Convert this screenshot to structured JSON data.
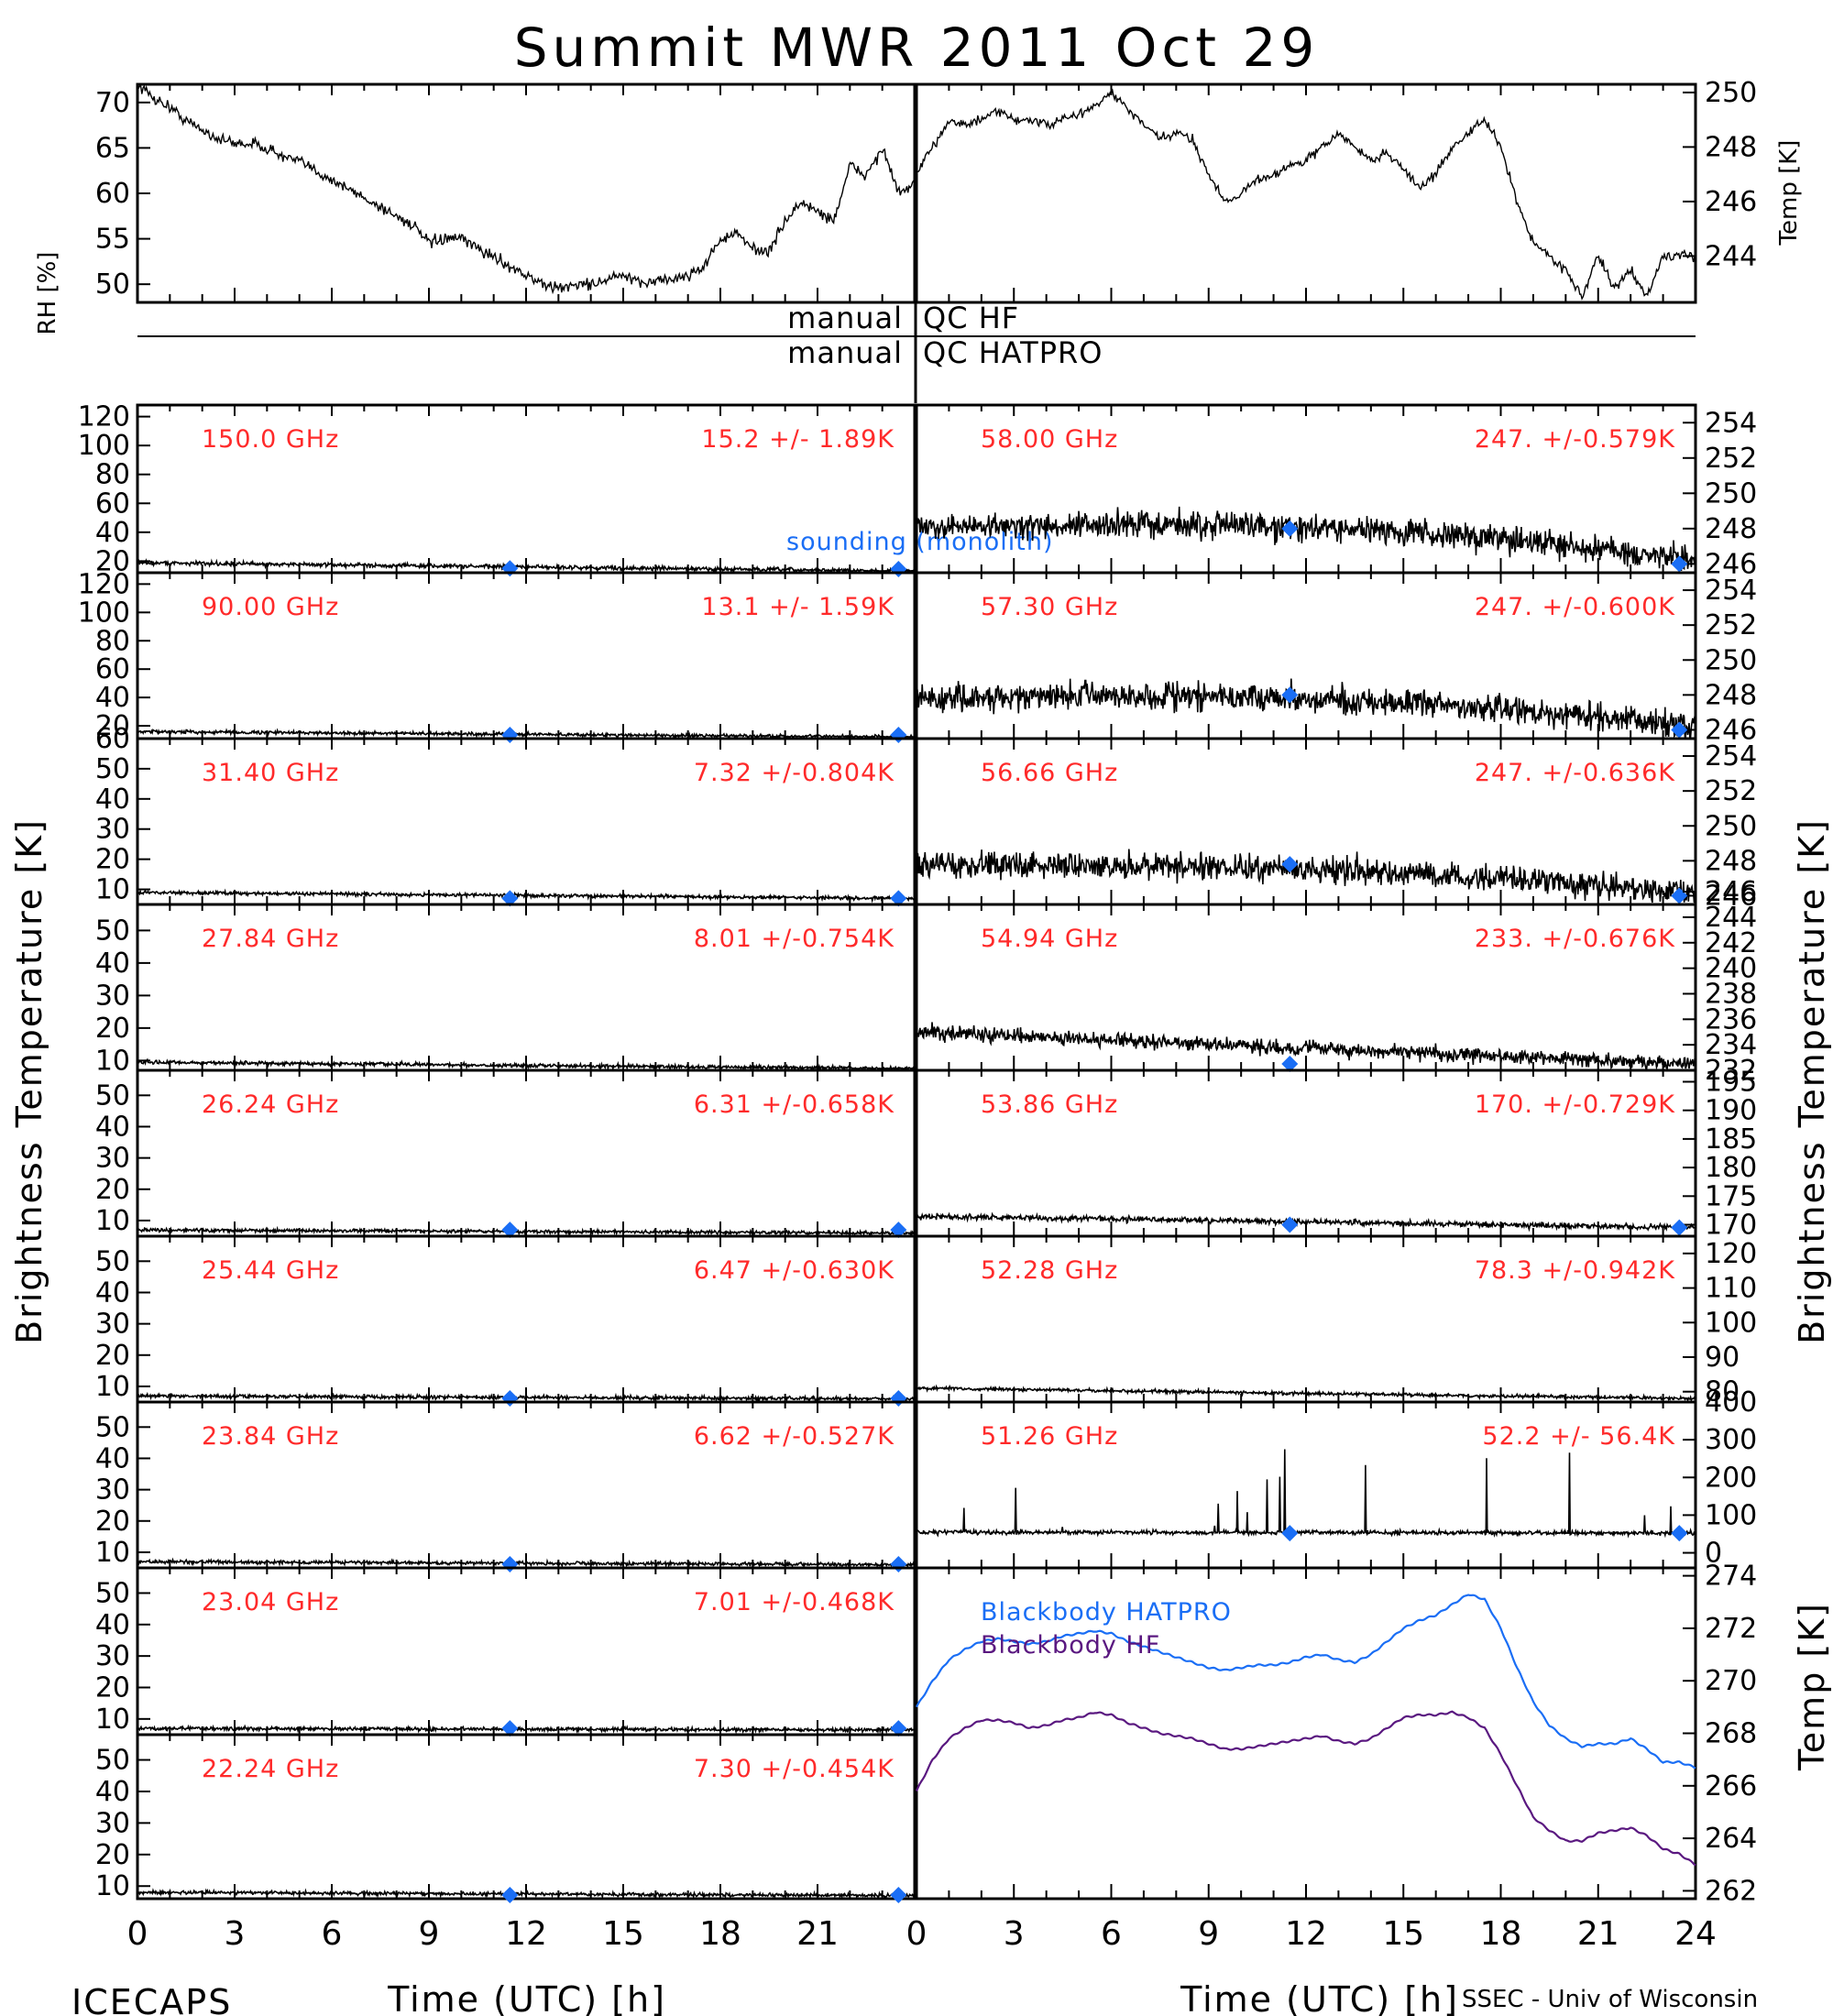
{
  "title": "Summit MWR 2011 Oct 29",
  "footer": {
    "left": "ICECAPS",
    "right": "SSEC - Univ of Wisconsin",
    "xlabel_left": "Time (UTC) [h]",
    "xlabel_right": "Time (UTC) [h]"
  },
  "qc": {
    "left1": "manual",
    "right1": "QC HF",
    "left2": "manual",
    "right2": "QC HATPRO"
  },
  "side_labels": {
    "rh": "RH [%]",
    "temp_top": "Temp [K]",
    "tb_left": "Brightness Temperature [K]",
    "tb_right": "Brightness Temperature [K]",
    "temp_bottom": "Temp [K]"
  },
  "sounding_label": "sounding (monolith)",
  "colors": {
    "axis": "#000000",
    "label": "#ff2a2a",
    "sounding": "#1a6ef5",
    "hatpro": "#1a6ef5",
    "hf": "#5a1880"
  },
  "chart_data": [
    {
      "type": "line",
      "panel": "relative-humidity",
      "ylabel": "RH [%]",
      "x_ticks": [
        0,
        3,
        6,
        9,
        12,
        15,
        18,
        21,
        24
      ],
      "ylim": [
        48,
        72
      ],
      "yticks": [
        50,
        55,
        60,
        65,
        70
      ],
      "x": [
        0,
        0.5,
        1,
        1.5,
        2,
        2.5,
        3,
        3.5,
        4,
        4.5,
        5,
        5.5,
        6,
        6.5,
        7,
        7.5,
        8,
        8.5,
        9,
        9.5,
        10,
        10.5,
        11,
        11.5,
        12,
        12.5,
        13,
        13.5,
        14,
        14.5,
        15,
        15.5,
        16,
        16.5,
        17,
        17.5,
        18,
        18.5,
        19,
        19.5,
        20,
        20.5,
        21,
        21.5,
        22,
        22.5,
        23,
        23.5,
        24
      ],
      "y": [
        72,
        70.5,
        69.5,
        68,
        67,
        66,
        65.5,
        65.5,
        65,
        64,
        63.5,
        62.5,
        61.5,
        60.5,
        59.5,
        58.5,
        57.5,
        56.5,
        54.5,
        55,
        55,
        54,
        53,
        52,
        51,
        50,
        49.5,
        50,
        50,
        50.5,
        51,
        50,
        50.5,
        50.5,
        51,
        52,
        55,
        55.5,
        54,
        53.5,
        57,
        59,
        58,
        57,
        63,
        62,
        65,
        60,
        61
      ]
    },
    {
      "type": "line",
      "panel": "temperature",
      "ylabel": "Temp [K]",
      "x_ticks": [
        0,
        3,
        6,
        9,
        12,
        15,
        18,
        21,
        24
      ],
      "ylim": [
        242.3,
        250.3
      ],
      "yticks": [
        244,
        246,
        248,
        250
      ],
      "x": [
        0,
        0.5,
        1,
        1.5,
        2,
        2.5,
        3,
        3.5,
        4,
        4.5,
        5,
        5.5,
        6,
        6.5,
        7,
        7.5,
        8,
        8.5,
        9,
        9.5,
        10,
        10.5,
        11,
        11.5,
        12,
        12.5,
        13,
        13.5,
        14,
        14.5,
        15,
        15.5,
        16,
        16.5,
        17,
        17.5,
        18,
        18.5,
        19,
        19.5,
        20,
        20.5,
        21,
        21.5,
        22,
        22.5,
        23,
        23.5,
        24
      ],
      "y": [
        247,
        248,
        249,
        248.8,
        249,
        249.3,
        249,
        249,
        248.8,
        249,
        249.2,
        249.5,
        250,
        249.4,
        248.8,
        248.3,
        248.5,
        248.3,
        247,
        246,
        246.3,
        246.8,
        247,
        247.3,
        247.5,
        248,
        248.5,
        248,
        247.5,
        247.8,
        247.2,
        246.5,
        247,
        248,
        248.5,
        249,
        248,
        246,
        244.5,
        244,
        243.5,
        242.5,
        244,
        242.8,
        243.5,
        242.5,
        244,
        244,
        244
      ]
    },
    {
      "type": "line",
      "panel": "brightness-temperature",
      "ylabel": "Brightness Temperature [K]",
      "x_ticks": [
        0,
        3,
        6,
        9,
        12,
        15,
        18,
        21,
        24
      ],
      "xlabel": "Time (UTC) [h]",
      "channels": [
        {
          "freq": "150.0 GHz",
          "stats": "15.2 +/-  1.89K",
          "ylim": [
            12,
            128
          ],
          "yticks": [
            20,
            40,
            60,
            80,
            100,
            120
          ],
          "start": 19,
          "end": 13,
          "noise": 1.0,
          "sounding": [
            15,
            14
          ]
        },
        {
          "freq": "90.00 GHz",
          "stats": "13.1 +/-  1.59K",
          "ylim": [
            11,
            128
          ],
          "yticks": [
            20,
            40,
            60,
            80,
            100,
            120
          ],
          "start": 16,
          "end": 12,
          "noise": 0.8,
          "sounding": [
            12,
            12
          ]
        },
        {
          "freq": "31.40 GHz",
          "stats": "7.32 +/-0.804K",
          "ylim": [
            5,
            60
          ],
          "yticks": [
            10,
            20,
            30,
            40,
            50,
            60
          ],
          "start": 9,
          "end": 7,
          "noise": 0.4,
          "sounding": [
            7,
            7
          ]
        },
        {
          "freq": "27.84 GHz",
          "stats": "8.01 +/-0.754K",
          "ylim": [
            7,
            58
          ],
          "yticks": [
            10,
            20,
            30,
            40,
            50
          ],
          "start": 9.5,
          "end": 7.5,
          "noise": 0.4,
          "sounding": [
            null,
            null
          ]
        },
        {
          "freq": "26.24 GHz",
          "stats": "6.31 +/-0.658K",
          "ylim": [
            5,
            58
          ],
          "yticks": [
            10,
            20,
            30,
            40,
            50
          ],
          "start": 7,
          "end": 6,
          "noise": 0.4,
          "sounding": [
            7,
            7
          ]
        },
        {
          "freq": "25.44 GHz",
          "stats": "6.47 +/-0.630K",
          "ylim": [
            5,
            58
          ],
          "yticks": [
            10,
            20,
            30,
            40,
            50
          ],
          "start": 7,
          "end": 6,
          "noise": 0.4,
          "sounding": [
            6,
            6
          ]
        },
        {
          "freq": "23.84 GHz",
          "stats": "6.62 +/-0.527K",
          "ylim": [
            5,
            58
          ],
          "yticks": [
            10,
            20,
            30,
            40,
            50
          ],
          "start": 7,
          "end": 6,
          "noise": 0.4,
          "sounding": [
            6,
            6
          ]
        },
        {
          "freq": "23.04 GHz",
          "stats": "7.01 +/-0.468K",
          "ylim": [
            5,
            58
          ],
          "yticks": [
            10,
            20,
            30,
            40,
            50
          ],
          "start": 7,
          "end": 6.5,
          "noise": 0.4,
          "sounding": [
            7,
            7
          ]
        },
        {
          "freq": "22.24 GHz",
          "stats": "7.30 +/-0.454K",
          "ylim": [
            6,
            58
          ],
          "yticks": [
            10,
            20,
            30,
            40,
            50
          ],
          "start": 8,
          "end": 7,
          "noise": 0.4,
          "sounding": [
            7,
            7
          ]
        },
        {
          "freq": "58.00 GHz",
          "stats": "247. +/-0.579K",
          "ylim": [
            245.5,
            255
          ],
          "yticks": [
            246,
            248,
            250,
            252,
            254
          ],
          "start": 248,
          "end": 246.2,
          "noise": 0.55,
          "bump": 1.0,
          "sounding": [
            248,
            246
          ]
        },
        {
          "freq": "57.30 GHz",
          "stats": "247. +/-0.600K",
          "ylim": [
            245.5,
            255
          ],
          "yticks": [
            246,
            248,
            250,
            252,
            254
          ],
          "start": 247.8,
          "end": 246.2,
          "noise": 0.55,
          "bump": 0.8,
          "sounding": [
            248,
            246
          ]
        },
        {
          "freq": "56.66 GHz",
          "stats": "247. +/-0.636K",
          "ylim": [
            245.5,
            255
          ],
          "yticks": [
            246,
            248,
            250,
            252,
            254
          ],
          "start": 247.8,
          "end": 246.2,
          "noise": 0.55,
          "bump": 0.5,
          "sounding": [
            247.8,
            246
          ]
        },
        {
          "freq": "54.94 GHz",
          "stats": "233. +/-0.676K",
          "ylim": [
            232,
            245
          ],
          "yticks": [
            232,
            234,
            236,
            238,
            240,
            242,
            244,
            246
          ],
          "start": 235,
          "end": 232.5,
          "noise": 0.4,
          "bump": 0,
          "sounding": [
            232.5,
            null
          ]
        },
        {
          "freq": "53.86 GHz",
          "stats": "170. +/-0.729K",
          "ylim": [
            168,
            197
          ],
          "yticks": [
            170,
            175,
            180,
            185,
            190,
            195
          ],
          "start": 171.5,
          "end": 169.5,
          "noise": 0.35,
          "bump": 0,
          "sounding": [
            170,
            169.5
          ]
        },
        {
          "freq": "52.28 GHz",
          "stats": "78.3 +/-0.942K",
          "ylim": [
            77,
            125
          ],
          "yticks": [
            80,
            90,
            100,
            110,
            120
          ],
          "start": 81,
          "end": 78,
          "noise": 0.35,
          "bump": 0,
          "sounding": [
            null,
            null
          ]
        },
        {
          "freq": "51.26 GHz",
          "stats": "52.2 +/- 56.4K",
          "ylim": [
            -40,
            400
          ],
          "yticks": [
            0,
            100,
            200,
            300,
            400
          ],
          "start": 55,
          "end": 52,
          "noise": 4,
          "bump": 0,
          "spiky": true,
          "sounding": [
            52,
            52
          ]
        }
      ]
    },
    {
      "type": "line",
      "panel": "blackbody-temperature",
      "ylabel": "Temp [K]",
      "ylim": [
        261.7,
        274.3
      ],
      "yticks": [
        262,
        264,
        266,
        268,
        270,
        272,
        274
      ],
      "x_ticks": [
        0,
        3,
        6,
        9,
        12,
        15,
        18,
        21,
        24
      ],
      "xlabel": "Time (UTC) [h]",
      "series": [
        {
          "name": "Blackbody HATPRO",
          "x": [
            0,
            0.5,
            1,
            1.5,
            2,
            2.5,
            3,
            3.5,
            4,
            4.5,
            5,
            5.5,
            6,
            6.5,
            7,
            7.5,
            8,
            8.5,
            9,
            9.5,
            10,
            10.5,
            11,
            11.5,
            12,
            12.5,
            13,
            13.5,
            14,
            14.5,
            15,
            15.5,
            16,
            16.5,
            17,
            17.5,
            18,
            18.5,
            19,
            19.5,
            20,
            20.5,
            21,
            21.5,
            22,
            22.5,
            23,
            23.5,
            24
          ],
          "y": [
            269,
            270,
            270.8,
            271.2,
            271.5,
            271.6,
            271.5,
            271.4,
            271.5,
            271.7,
            271.8,
            271.9,
            271.8,
            271.5,
            271.3,
            271.1,
            270.9,
            270.7,
            270.5,
            270.4,
            270.5,
            270.6,
            270.6,
            270.7,
            270.9,
            271,
            270.8,
            270.7,
            271,
            271.5,
            272,
            272.3,
            272.5,
            272.9,
            273.3,
            273.1,
            272,
            270.5,
            269.2,
            268.3,
            267.8,
            267.5,
            267.6,
            267.6,
            267.8,
            267.4,
            266.9,
            266.9,
            266.7
          ]
        },
        {
          "name": "Blackbody HF",
          "x": [
            0,
            0.5,
            1,
            1.5,
            2,
            2.5,
            3,
            3.5,
            4,
            4.5,
            5,
            5.5,
            6,
            6.5,
            7,
            7.5,
            8,
            8.5,
            9,
            9.5,
            10,
            10.5,
            11,
            11.5,
            12,
            12.5,
            13,
            13.5,
            14,
            14.5,
            15,
            15.5,
            16,
            16.5,
            17,
            17.5,
            18,
            18.5,
            19,
            19.5,
            20,
            20.5,
            21,
            21.5,
            22,
            22.5,
            23,
            23.5,
            24
          ],
          "y": [
            265.8,
            267,
            267.8,
            268.2,
            268.5,
            268.5,
            268.4,
            268.2,
            268.3,
            268.5,
            268.6,
            268.8,
            268.7,
            268.4,
            268.2,
            268,
            267.9,
            267.8,
            267.6,
            267.4,
            267.4,
            267.5,
            267.6,
            267.7,
            267.8,
            267.9,
            267.7,
            267.6,
            267.8,
            268.2,
            268.6,
            268.7,
            268.7,
            268.8,
            268.6,
            268.2,
            267.2,
            266,
            264.8,
            264.3,
            263.9,
            263.9,
            264.2,
            264.3,
            264.4,
            264.1,
            263.6,
            263.4,
            263
          ]
        }
      ]
    }
  ]
}
